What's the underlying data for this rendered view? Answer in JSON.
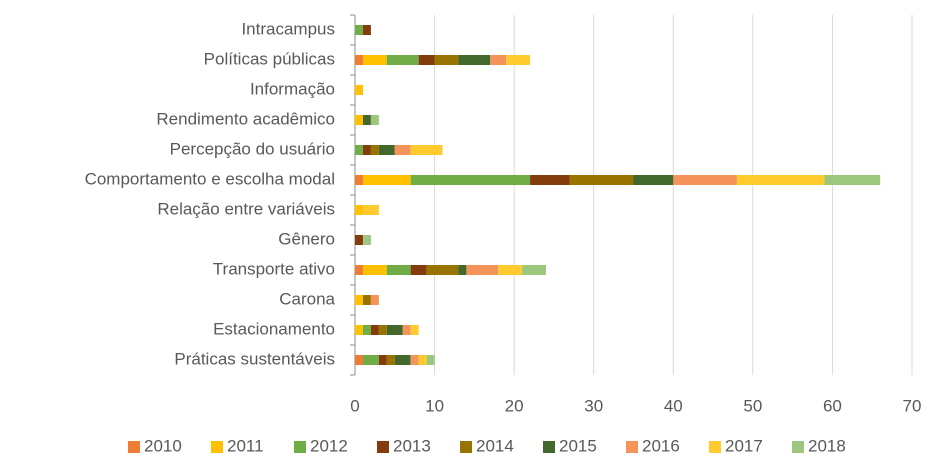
{
  "chart_data": {
    "type": "stacked_barh",
    "categories": [
      "Intracampus",
      "Políticas públicas",
      "Informação",
      "Rendimento acadêmico",
      "Percepção do usuário",
      "Comportamento e escolha modal",
      "Relação entre variáveis",
      "Gênero",
      "Transporte ativo",
      "Carona",
      "Estacionamento",
      "Práticas sustentáveis"
    ],
    "series": [
      {
        "name": "2010",
        "color": "#ed7d31",
        "values": [
          0,
          1,
          0,
          0,
          0,
          1,
          0,
          0,
          1,
          0,
          0,
          1
        ]
      },
      {
        "name": "2011",
        "color": "#ffc000",
        "values": [
          0,
          3,
          1,
          1,
          0,
          6,
          1,
          0,
          3,
          1,
          1,
          0
        ]
      },
      {
        "name": "2012",
        "color": "#70ad47",
        "values": [
          1,
          4,
          0,
          0,
          1,
          15,
          0,
          0,
          3,
          0,
          1,
          2
        ]
      },
      {
        "name": "2013",
        "color": "#843c0c",
        "values": [
          1,
          2,
          0,
          0,
          1,
          5,
          0,
          1,
          2,
          0,
          1,
          1
        ]
      },
      {
        "name": "2014",
        "color": "#997300",
        "values": [
          0,
          3,
          0,
          0,
          1,
          8,
          0,
          0,
          4,
          1,
          1,
          1
        ]
      },
      {
        "name": "2015",
        "color": "#43682b",
        "values": [
          0,
          4,
          0,
          1,
          2,
          5,
          0,
          0,
          1,
          0,
          2,
          2
        ]
      },
      {
        "name": "2016",
        "color": "#f4945a",
        "values": [
          0,
          2,
          0,
          0,
          2,
          8,
          0,
          0,
          4,
          1,
          1,
          1
        ]
      },
      {
        "name": "2017",
        "color": "#ffcb2f",
        "values": [
          0,
          3,
          0,
          0,
          4,
          11,
          2,
          0,
          3,
          0,
          1,
          1
        ]
      },
      {
        "name": "2018",
        "color": "#9dc77e",
        "values": [
          0,
          0,
          0,
          1,
          0,
          7,
          0,
          1,
          3,
          0,
          0,
          1
        ]
      }
    ],
    "xlim": [
      0,
      70
    ],
    "xticks": [
      0,
      10,
      20,
      30,
      40,
      50,
      60,
      70
    ],
    "grid": true,
    "legend": "bottom"
  }
}
